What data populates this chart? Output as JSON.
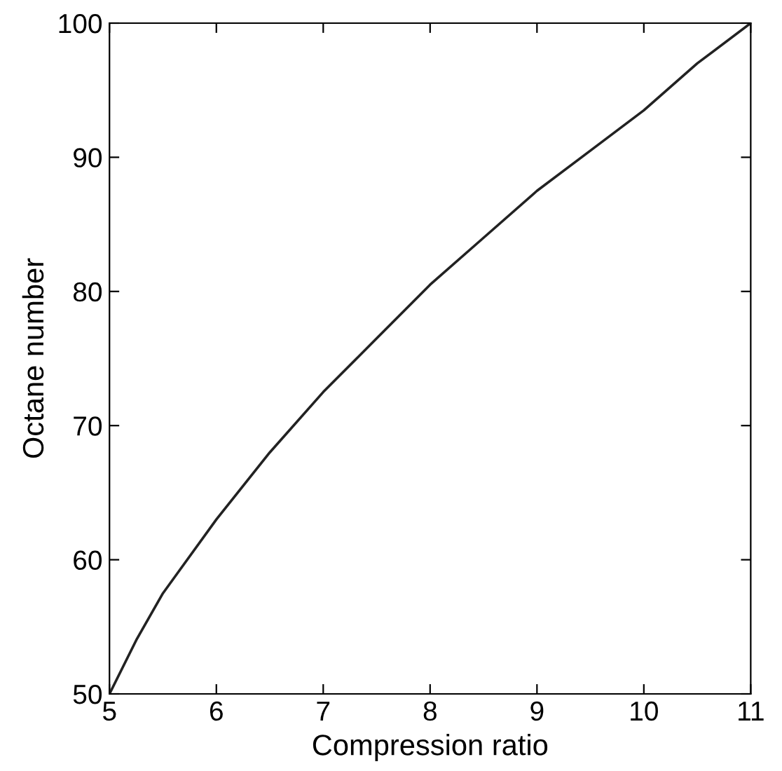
{
  "chart_data": {
    "type": "line",
    "xlabel": "Compression ratio",
    "ylabel": "Octane number",
    "x": [
      5,
      5.25,
      5.5,
      6,
      6.5,
      7,
      7.5,
      8,
      8.5,
      9,
      9.5,
      10,
      10.5,
      11
    ],
    "series": [
      {
        "color": "#222222",
        "values": [
          50,
          54,
          57.5,
          63,
          68,
          72.5,
          76.5,
          80.5,
          84,
          87.5,
          90.5,
          93.5,
          97,
          100
        ]
      }
    ],
    "xlim": [
      5,
      11
    ],
    "xticks": [
      5,
      6,
      7,
      8,
      9,
      10,
      11
    ],
    "ylim": [
      50,
      100
    ],
    "yticks": [
      50,
      60,
      70,
      80,
      90,
      100
    ],
    "grid": false,
    "legend": false,
    "marker": "none",
    "line_style": "solid"
  }
}
